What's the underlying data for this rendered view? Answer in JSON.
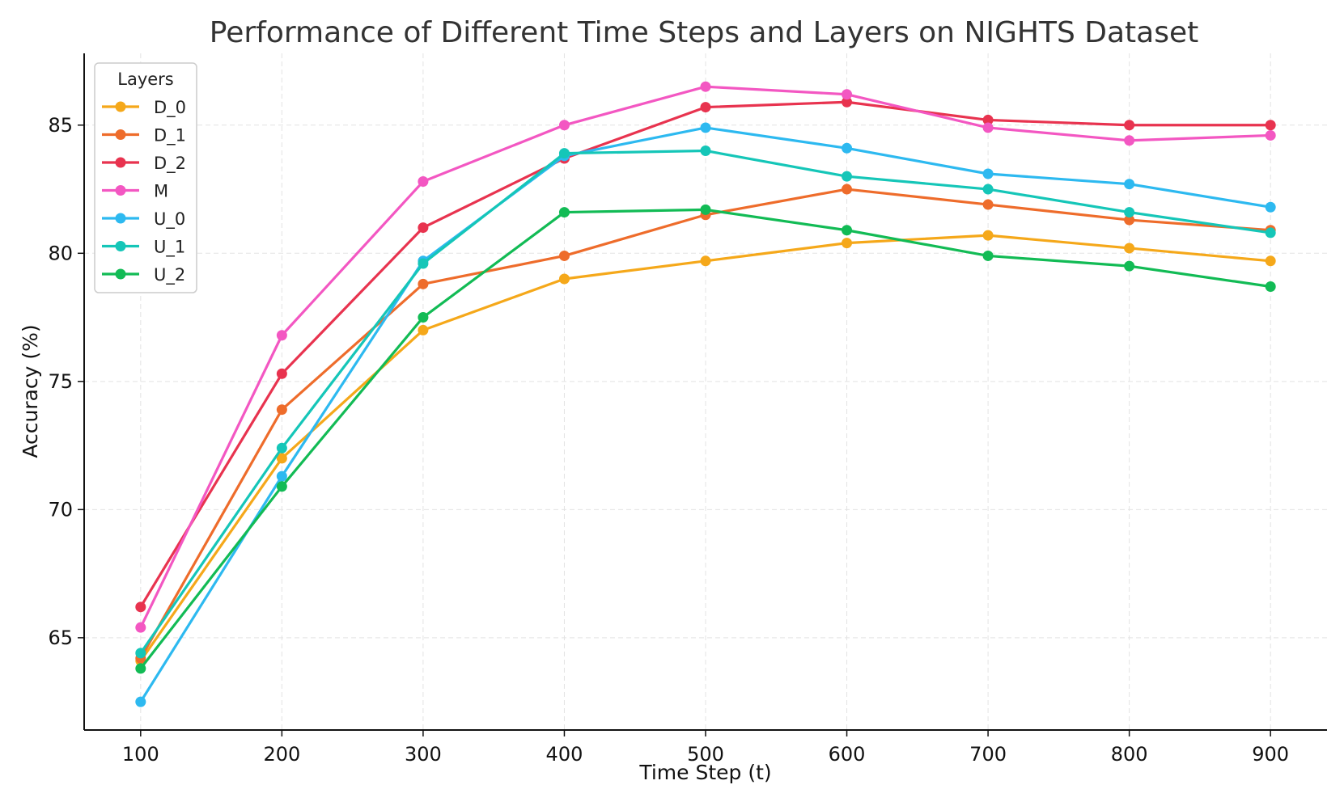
{
  "chart_data": {
    "type": "line",
    "title": "Performance of Different Time Steps and Layers on NIGHTS Dataset",
    "xlabel": "Time Step (t)",
    "ylabel": "Accuracy (%)",
    "x": [
      100,
      200,
      300,
      400,
      500,
      600,
      700,
      800,
      900
    ],
    "xticks": [
      "100",
      "200",
      "300",
      "400",
      "500",
      "600",
      "700",
      "800",
      "900"
    ],
    "yticks": [
      "65",
      "70",
      "75",
      "80",
      "85"
    ],
    "xlim": [
      60,
      940
    ],
    "ylim": [
      61.4,
      87.8
    ],
    "grid": true,
    "legend": {
      "title": "Layers",
      "position": "top-left"
    },
    "series": [
      {
        "name": "D_0",
        "color": "#f5a81a",
        "values": [
          64.1,
          72.0,
          77.0,
          79.0,
          79.7,
          80.4,
          80.7,
          80.2,
          79.7
        ]
      },
      {
        "name": "D_1",
        "color": "#ee6c2b",
        "values": [
          64.2,
          73.9,
          78.8,
          79.9,
          81.5,
          82.5,
          81.9,
          81.3,
          80.9
        ]
      },
      {
        "name": "D_2",
        "color": "#e8334f",
        "values": [
          66.2,
          75.3,
          81.0,
          83.7,
          85.7,
          85.9,
          85.2,
          85.0,
          85.0
        ]
      },
      {
        "name": "M",
        "color": "#f357c2",
        "values": [
          65.4,
          76.8,
          82.8,
          85.0,
          86.5,
          86.2,
          84.9,
          84.4,
          84.6
        ]
      },
      {
        "name": "U_0",
        "color": "#2db9f0",
        "values": [
          62.5,
          71.3,
          79.7,
          83.8,
          84.9,
          84.1,
          83.1,
          82.7,
          81.8
        ]
      },
      {
        "name": "U_1",
        "color": "#15c6b8",
        "values": [
          64.4,
          72.4,
          79.6,
          83.9,
          84.0,
          83.0,
          82.5,
          81.6,
          80.8
        ]
      },
      {
        "name": "U_2",
        "color": "#12bb55",
        "values": [
          63.8,
          70.9,
          77.5,
          81.6,
          81.7,
          80.9,
          79.9,
          79.5,
          78.7
        ]
      }
    ]
  }
}
